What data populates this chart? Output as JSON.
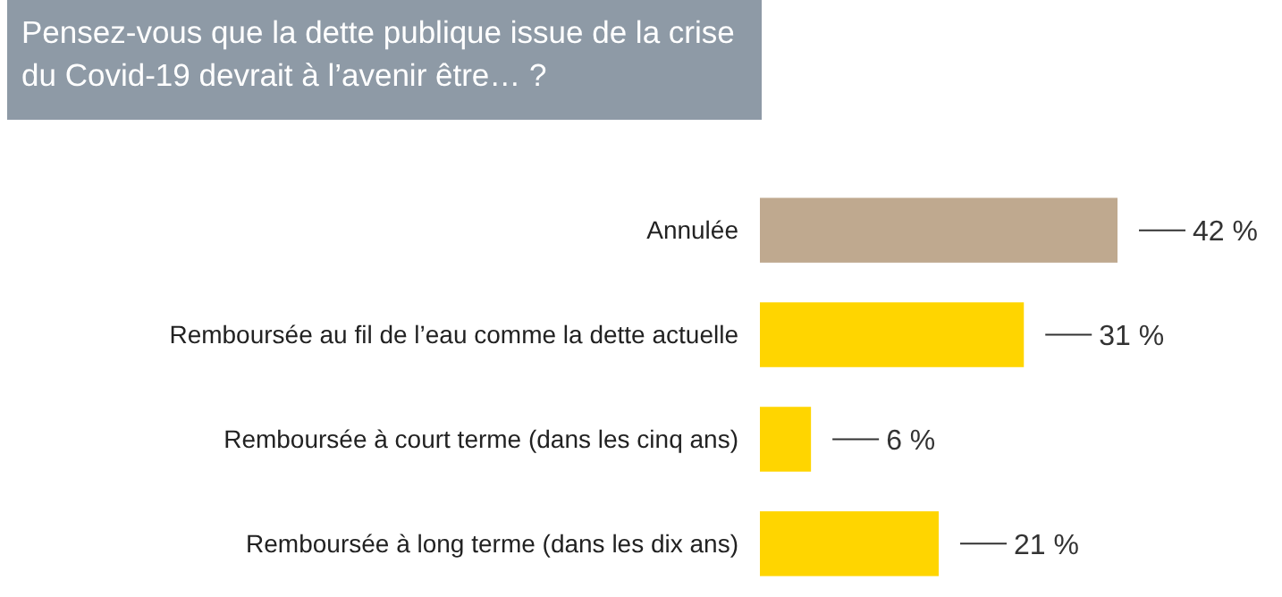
{
  "chart_data": {
    "type": "bar",
    "orientation": "horizontal",
    "title": "Pensez-vous que la dette publique issue de la crise du Covid-19 devrait à l’avenir être… ?",
    "categories": [
      "Annulée",
      "Remboursée au fil de l’eau comme la dette actuelle",
      "Remboursée à court terme (dans les cinq ans)",
      "Remboursée à long terme (dans les dix ans)"
    ],
    "values": [
      42,
      31,
      6,
      21
    ],
    "colors": [
      "#bfa98f",
      "#ffd500",
      "#ffd500",
      "#ffd500"
    ],
    "value_labels": [
      "42 %",
      "31 %",
      "6 %",
      "21 %"
    ]
  }
}
